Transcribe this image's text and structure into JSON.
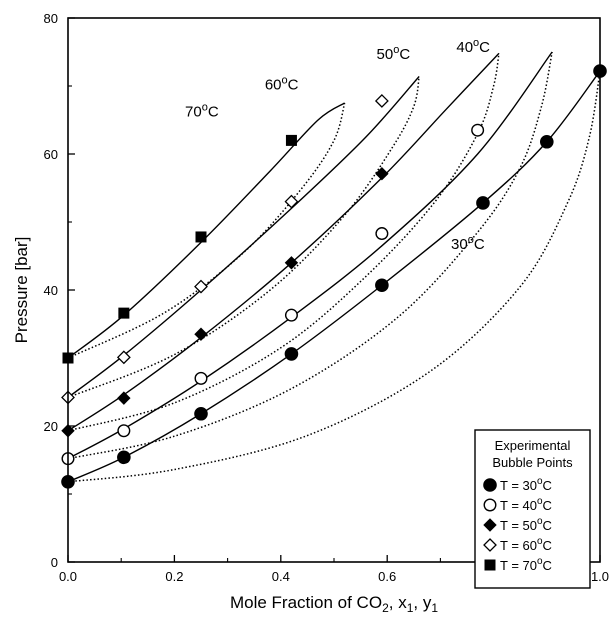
{
  "chart_data": {
    "type": "scatter",
    "xlabel": {
      "main": "Mole Fraction of CO",
      "sub1": "2",
      "mid": ", x",
      "sub2": "1",
      "sep": ", y",
      "sub3": "1"
    },
    "ylabel": "Pressure [bar]",
    "xlim": [
      0.0,
      1.0
    ],
    "ylim": [
      0,
      80
    ],
    "xticks": [
      "0.0",
      "0.2",
      "0.4",
      "0.6",
      "0.8",
      "1.0"
    ],
    "yticks": [
      "0",
      "20",
      "40",
      "60",
      "80"
    ],
    "legend": {
      "title_line1": "Experimental",
      "title_line2": "Bubble Points",
      "position": "bottom-right"
    },
    "series": [
      {
        "name": "T = 30",
        "temp_label": "30",
        "marker": "filled-circle",
        "points": [
          [
            0.0,
            11.8
          ],
          [
            0.105,
            15.4
          ],
          [
            0.25,
            21.8
          ],
          [
            0.42,
            30.6
          ],
          [
            0.59,
            40.7
          ],
          [
            0.78,
            52.8
          ],
          [
            0.9,
            61.8
          ],
          [
            1.0,
            72.2
          ]
        ],
        "bubble_curve": [
          [
            0.0,
            11.8
          ],
          [
            0.105,
            15.4
          ],
          [
            0.25,
            21.8
          ],
          [
            0.42,
            30.6
          ],
          [
            0.59,
            40.7
          ],
          [
            0.78,
            52.8
          ],
          [
            0.9,
            61.8
          ],
          [
            1.0,
            72.2
          ]
        ],
        "dew_curve": [
          [
            0.0,
            11.8
          ],
          [
            0.2,
            13.6
          ],
          [
            0.45,
            18.6
          ],
          [
            0.68,
            28.0
          ],
          [
            0.85,
            40.5
          ],
          [
            0.94,
            53.0
          ],
          [
            0.98,
            62.5
          ],
          [
            1.0,
            72.2
          ]
        ]
      },
      {
        "name": "T = 40",
        "temp_label": "40",
        "marker": "open-circle",
        "points": [
          [
            0.0,
            15.2
          ],
          [
            0.105,
            19.3
          ],
          [
            0.25,
            27.0
          ],
          [
            0.42,
            36.3
          ],
          [
            0.59,
            48.3
          ],
          [
            0.77,
            63.5
          ]
        ],
        "bubble_curve": [
          [
            0.0,
            15.2
          ],
          [
            0.105,
            19.6
          ],
          [
            0.25,
            26.6
          ],
          [
            0.42,
            36.0
          ],
          [
            0.59,
            46.5
          ],
          [
            0.77,
            60.0
          ],
          [
            0.91,
            75.0
          ]
        ],
        "dew_curve": [
          [
            0.0,
            15.2
          ],
          [
            0.2,
            18.5
          ],
          [
            0.42,
            25.5
          ],
          [
            0.62,
            36.0
          ],
          [
            0.77,
            48.5
          ],
          [
            0.85,
            58.0
          ],
          [
            0.89,
            67.0
          ],
          [
            0.91,
            75.0
          ]
        ]
      },
      {
        "name": "T = 50",
        "temp_label": "50",
        "marker": "filled-diamond",
        "points": [
          [
            0.0,
            19.3
          ],
          [
            0.105,
            24.1
          ],
          [
            0.25,
            33.5
          ],
          [
            0.42,
            44.0
          ],
          [
            0.59,
            57.1
          ]
        ],
        "bubble_curve": [
          [
            0.0,
            19.3
          ],
          [
            0.105,
            24.6
          ],
          [
            0.25,
            33.0
          ],
          [
            0.42,
            44.0
          ],
          [
            0.59,
            56.5
          ],
          [
            0.71,
            66.5
          ],
          [
            0.81,
            74.8
          ]
        ],
        "dew_curve": [
          [
            0.0,
            19.3
          ],
          [
            0.2,
            23.4
          ],
          [
            0.4,
            31.5
          ],
          [
            0.56,
            42.0
          ],
          [
            0.69,
            53.0
          ],
          [
            0.77,
            63.0
          ],
          [
            0.8,
            70.0
          ],
          [
            0.81,
            74.8
          ]
        ]
      },
      {
        "name": "T = 60",
        "temp_label": "60",
        "marker": "open-diamond",
        "points": [
          [
            0.0,
            24.2
          ],
          [
            0.105,
            30.1
          ],
          [
            0.25,
            40.5
          ],
          [
            0.42,
            53.0
          ],
          [
            0.59,
            67.8
          ]
        ],
        "bubble_curve": [
          [
            0.0,
            24.2
          ],
          [
            0.105,
            30.4
          ],
          [
            0.25,
            40.0
          ],
          [
            0.42,
            52.0
          ],
          [
            0.56,
            62.5
          ],
          [
            0.66,
            71.4
          ]
        ],
        "dew_curve": [
          [
            0.0,
            24.2
          ],
          [
            0.2,
            30.5
          ],
          [
            0.38,
            40.0
          ],
          [
            0.52,
            51.0
          ],
          [
            0.61,
            61.0
          ],
          [
            0.65,
            67.0
          ],
          [
            0.66,
            71.4
          ]
        ]
      },
      {
        "name": "T = 70",
        "temp_label": "70",
        "marker": "filled-square",
        "points": [
          [
            0.0,
            30.0
          ],
          [
            0.105,
            36.6
          ],
          [
            0.25,
            47.8
          ],
          [
            0.42,
            62.0
          ]
        ],
        "bubble_curve": [
          [
            0.0,
            30.0
          ],
          [
            0.105,
            36.3
          ],
          [
            0.25,
            47.0
          ],
          [
            0.38,
            57.5
          ],
          [
            0.47,
            65.0
          ],
          [
            0.52,
            67.5
          ]
        ],
        "dew_curve": [
          [
            0.0,
            30.0
          ],
          [
            0.18,
            36.6
          ],
          [
            0.33,
            45.5
          ],
          [
            0.44,
            55.0
          ],
          [
            0.5,
            62.0
          ],
          [
            0.52,
            67.5
          ]
        ]
      }
    ],
    "curve_labels": [
      {
        "text": "70",
        "x": 0.22,
        "y": 65.5
      },
      {
        "text": "60",
        "x": 0.37,
        "y": 69.5
      },
      {
        "text": "50",
        "x": 0.58,
        "y": 74.0
      },
      {
        "text": "40",
        "x": 0.73,
        "y": 75.0
      },
      {
        "text": "30",
        "x": 0.72,
        "y": 46.0
      }
    ],
    "degree_unit": "C"
  }
}
